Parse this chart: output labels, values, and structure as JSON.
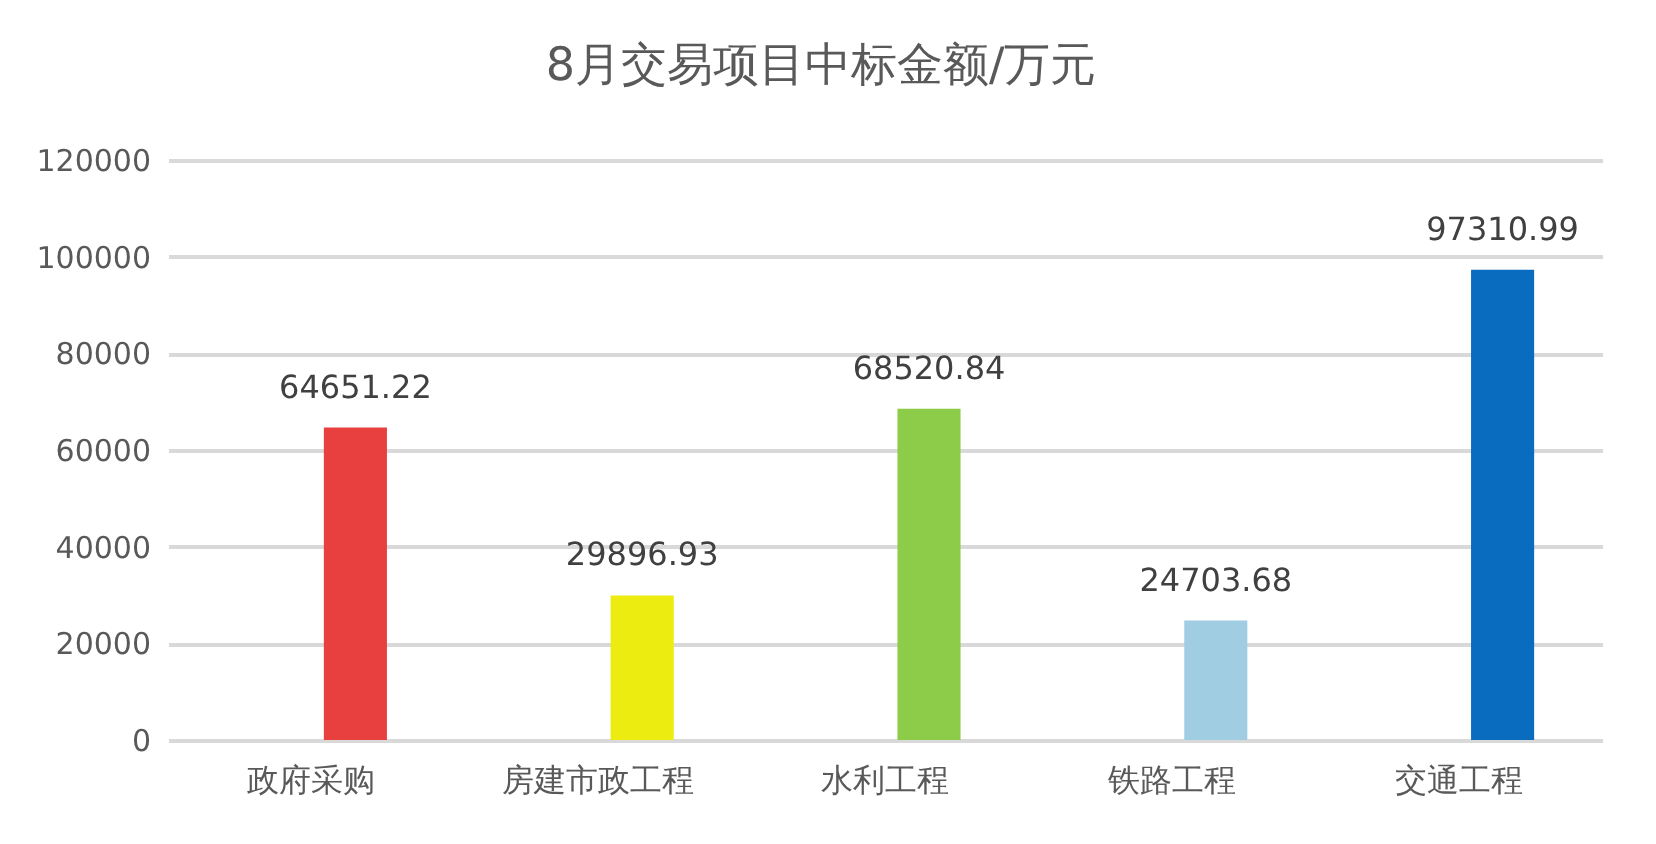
{
  "chart_data": {
    "type": "bar",
    "title": "8月交易项目中标金额/万元",
    "categories": [
      "政府采购",
      "房建市政工程",
      "水利工程",
      "铁路工程",
      "交通工程"
    ],
    "values": [
      64651.22,
      29896.93,
      68520.84,
      24703.68,
      97310.99
    ],
    "colors": [
      "#e8403f",
      "#ecec10",
      "#8ccc48",
      "#a0cde2",
      "#0a6cbe"
    ],
    "ylim": [
      0,
      120000
    ],
    "yticks": [
      0,
      20000,
      40000,
      60000,
      80000,
      100000,
      120000
    ],
    "grid": "y",
    "data_labels": true
  }
}
